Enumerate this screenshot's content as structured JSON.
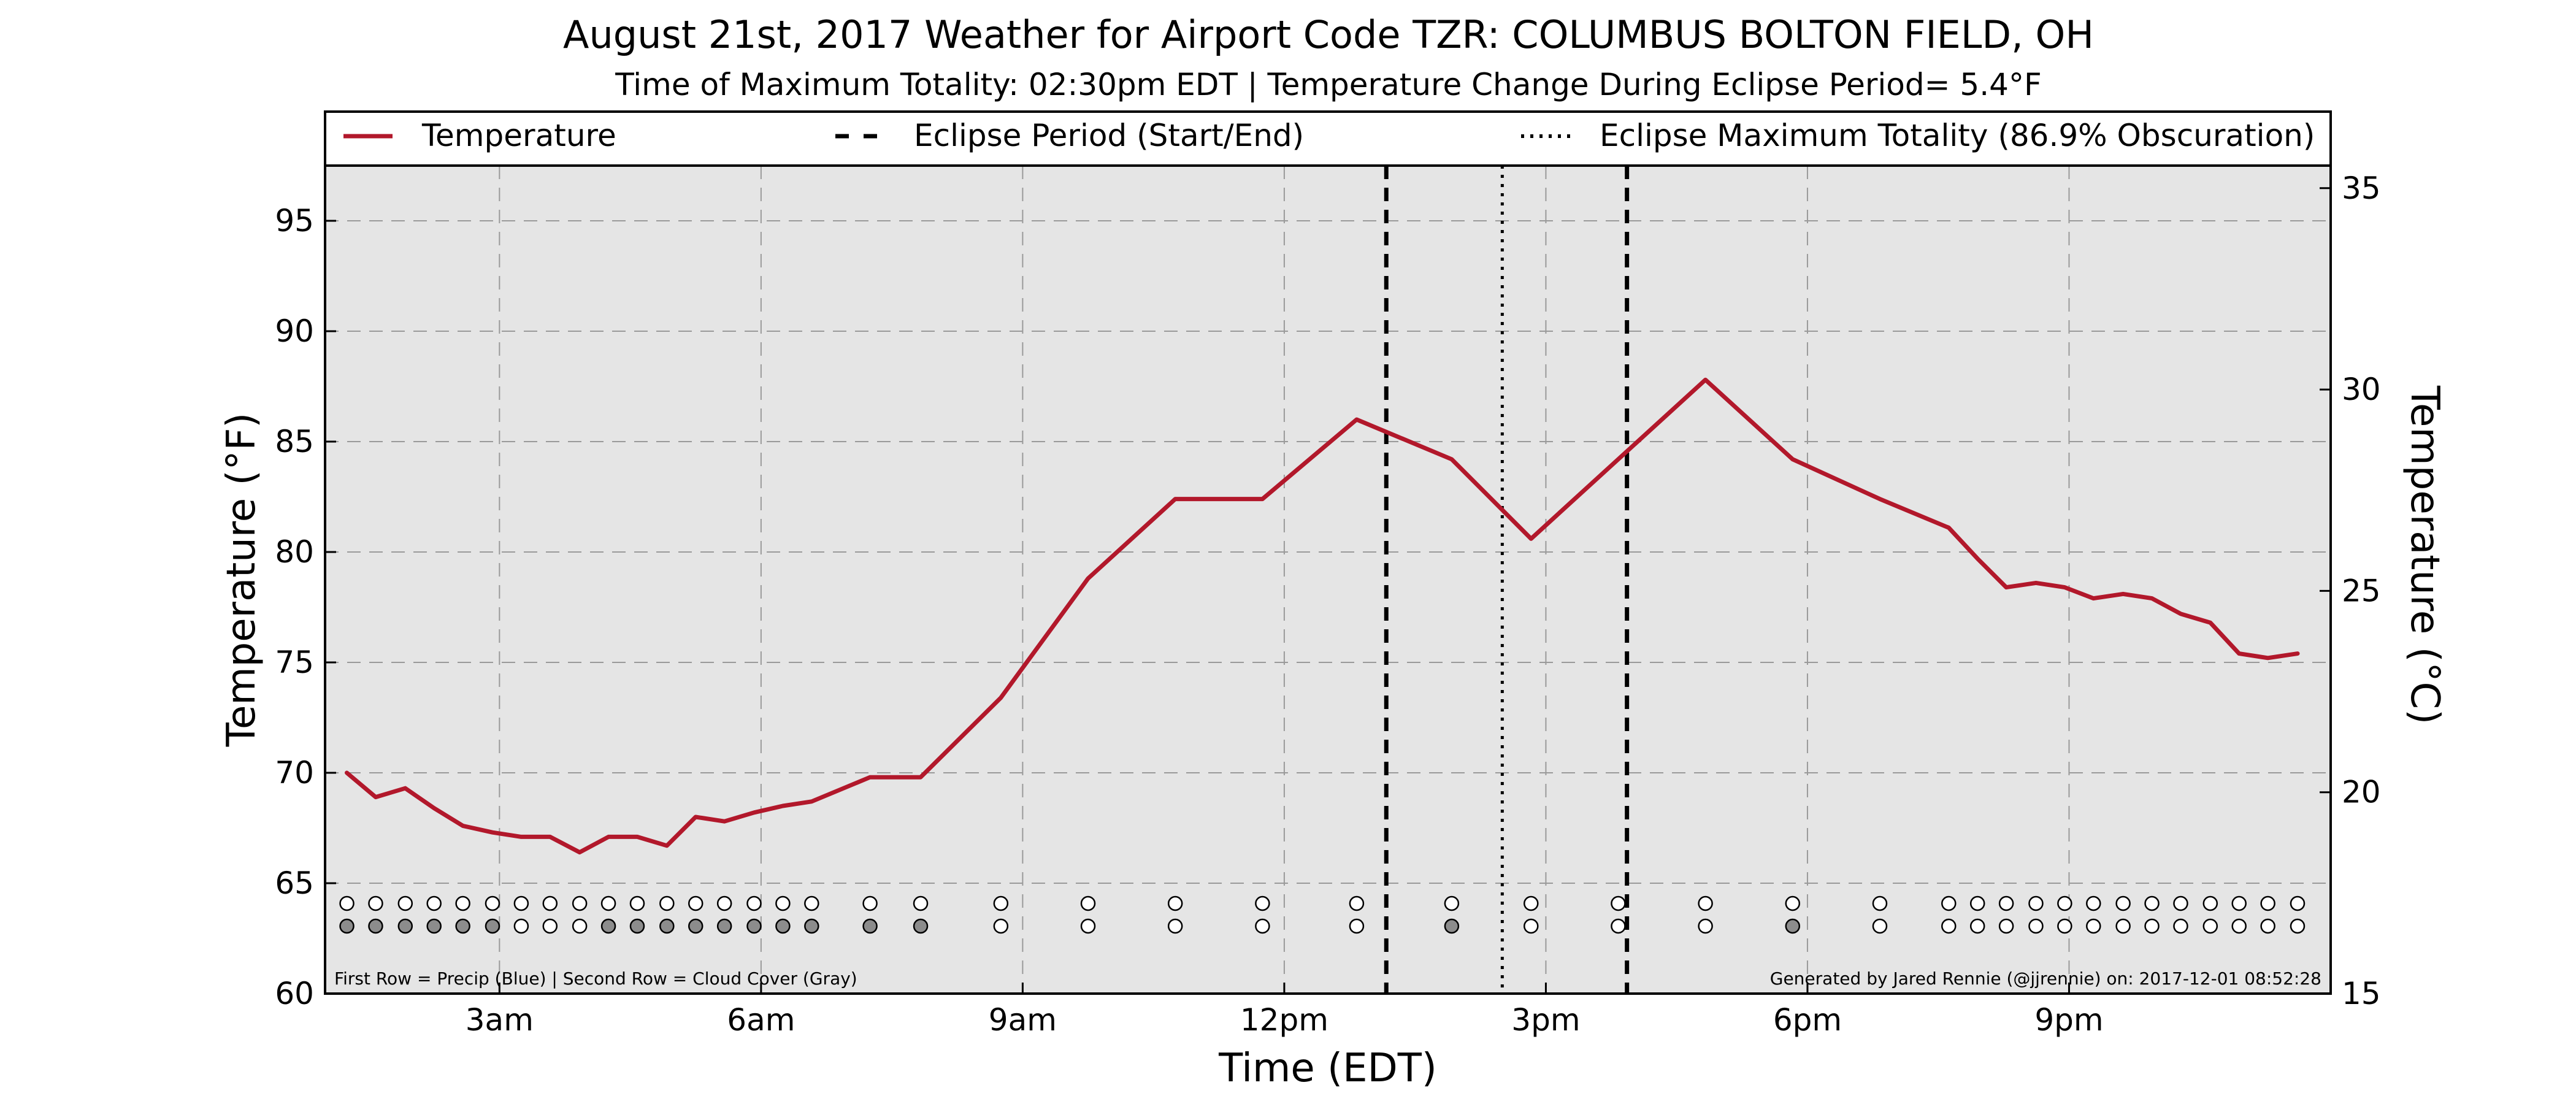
{
  "chart_data": {
    "type": "line",
    "title": "August 21st, 2017 Weather for Airport Code TZR: COLUMBUS BOLTON FIELD, OH",
    "subtitle": "Time of Maximum Totality: 02:30pm EDT | Temperature Change During Eclipse Period= 5.4°F",
    "xlabel": "Time (EDT)",
    "ylabel": "Temperature (°F)",
    "ylabel_right": "Temperature (°C)",
    "xlim": [
      1.0,
      24.0
    ],
    "ylim": [
      60,
      97.5
    ],
    "ylim_right": [
      15,
      35.56
    ],
    "xticks": [
      3,
      6,
      9,
      12,
      15,
      18,
      21
    ],
    "xtick_labels": [
      "3am",
      "6am",
      "9am",
      "12pm",
      "3pm",
      "6pm",
      "9pm"
    ],
    "yticks": [
      60,
      65,
      70,
      75,
      80,
      85,
      90,
      95
    ],
    "yticks_right": [
      15,
      20,
      25,
      30,
      35
    ],
    "grid": true,
    "legend_position": "top",
    "legend": [
      {
        "label": "Temperature",
        "style": "solid"
      },
      {
        "label": "Eclipse Period (Start/End)",
        "style": "dashed"
      },
      {
        "label": "Eclipse Maximum Totality (86.9% Obscuration)",
        "style": "dotted"
      }
    ],
    "series": [
      {
        "name": "Temperature",
        "color": "#b2182b",
        "x": [
          1.25,
          1.58,
          1.92,
          2.25,
          2.58,
          2.92,
          3.25,
          3.58,
          3.92,
          4.25,
          4.58,
          4.92,
          5.25,
          5.58,
          5.92,
          6.25,
          6.58,
          7.25,
          7.83,
          8.75,
          9.75,
          10.75,
          11.75,
          12.83,
          13.92,
          14.83,
          15.83,
          16.83,
          17.83,
          18.83,
          19.62,
          19.95,
          20.28,
          20.62,
          20.95,
          21.28,
          21.62,
          21.95,
          22.28,
          22.62,
          22.95,
          23.28,
          23.62
        ],
        "y": [
          70.0,
          68.9,
          69.3,
          68.4,
          67.6,
          67.3,
          67.1,
          67.1,
          66.4,
          67.1,
          67.1,
          66.7,
          68.0,
          67.8,
          68.2,
          68.5,
          68.7,
          69.8,
          69.8,
          73.4,
          78.8,
          82.4,
          82.4,
          86.0,
          84.2,
          80.6,
          84.2,
          87.8,
          84.2,
          82.4,
          81.1,
          79.7,
          78.4,
          78.6,
          78.4,
          77.9,
          78.1,
          77.9,
          77.2,
          76.8,
          75.4,
          75.2,
          75.4
        ]
      }
    ],
    "eclipse_start": 13.17,
    "eclipse_end": 15.93,
    "eclipse_max": 14.5,
    "precip_markers": {
      "x": [
        1.25,
        1.58,
        1.92,
        2.25,
        2.58,
        2.92,
        3.25,
        3.58,
        3.92,
        4.25,
        4.58,
        4.92,
        5.25,
        5.58,
        5.92,
        6.25,
        6.58,
        7.25,
        7.83,
        8.75,
        9.75,
        10.75,
        11.75,
        12.83,
        13.92,
        14.83,
        15.83,
        16.83,
        17.83,
        18.83,
        19.62,
        19.95,
        20.28,
        20.62,
        20.95,
        21.28,
        21.62,
        21.95,
        22.28,
        22.62,
        22.95,
        23.28,
        23.62
      ],
      "filled": [
        false,
        false,
        false,
        false,
        false,
        false,
        false,
        false,
        false,
        false,
        false,
        false,
        false,
        false,
        false,
        false,
        false,
        false,
        false,
        false,
        false,
        false,
        false,
        false,
        false,
        false,
        false,
        false,
        false,
        false,
        false,
        false,
        false,
        false,
        false,
        false,
        false,
        false,
        false,
        false,
        false,
        false,
        false
      ]
    },
    "cloud_markers": {
      "x": [
        1.25,
        1.58,
        1.92,
        2.25,
        2.58,
        2.92,
        3.25,
        3.58,
        3.92,
        4.25,
        4.58,
        4.92,
        5.25,
        5.58,
        5.92,
        6.25,
        6.58,
        7.25,
        7.83,
        8.75,
        9.75,
        10.75,
        11.75,
        12.83,
        13.92,
        14.83,
        15.83,
        16.83,
        17.83,
        18.83,
        19.62,
        19.95,
        20.28,
        20.62,
        20.95,
        21.28,
        21.62,
        21.95,
        22.28,
        22.62,
        22.95,
        23.28,
        23.62
      ],
      "filled": [
        true,
        true,
        true,
        true,
        true,
        true,
        false,
        false,
        false,
        true,
        true,
        true,
        true,
        true,
        true,
        true,
        true,
        true,
        true,
        false,
        false,
        false,
        false,
        false,
        true,
        false,
        false,
        false,
        true,
        false,
        false,
        false,
        false,
        false,
        false,
        false,
        false,
        false,
        false,
        false,
        false,
        false,
        false
      ]
    },
    "annotation_left": "First Row = Precip (Blue) | Second Row = Cloud Cover (Gray)",
    "annotation_right": "Generated by Jared Rennie (@jjrennie) on: 2017-12-01 08:52:28",
    "colors": {
      "background": "#e5e5e5",
      "line": "#b2182b",
      "cloud_fill": "#8c8c8c"
    }
  }
}
